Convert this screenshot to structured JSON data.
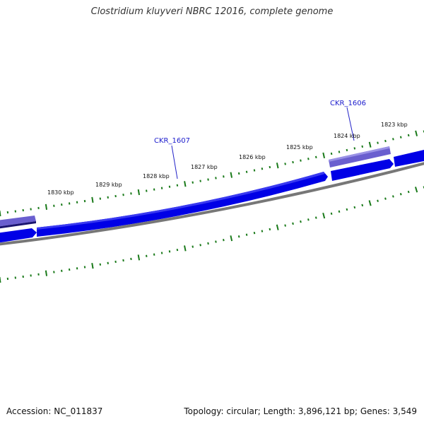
{
  "title": "Clostridium kluyveri NBRC 12016, complete genome",
  "accession": "Accession: NC_011837",
  "stats": "Topology: circular; Length: 3,896,121 bp; Genes: 3,549",
  "tick_labels": [
    "1823 kbp",
    "1824 kbp",
    "1825 kbp",
    "1826 kbp",
    "1827 kbp",
    "1828 kbp",
    "1829 kbp",
    "1830 kbp"
  ],
  "gene_labels": [
    "CKR_1606",
    "CKR_1607"
  ],
  "colors": {
    "forward_gene": "#0000e6",
    "reverse_gene": "#6a5fcf",
    "backbone": "#777777",
    "tick": "#1a7a1a",
    "label": "#1a1acc"
  }
}
